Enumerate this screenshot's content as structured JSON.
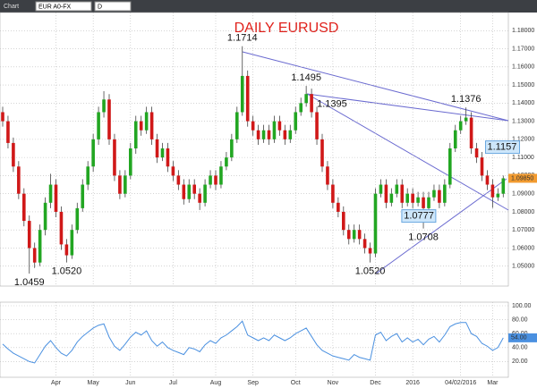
{
  "window": {
    "title": "Chart",
    "instrument": "EUR A0-FX",
    "interval": "D"
  },
  "chart_data": {
    "type": "candlestick",
    "title": "DAILY EURUSD",
    "up_color": "#22a622",
    "down_color": "#d01818",
    "grid": true,
    "open": [
      1.135,
      1.13,
      1.118,
      1.105,
      1.09,
      1.075,
      1.06,
      1.052,
      1.07,
      1.085,
      1.095,
      1.08,
      1.062,
      1.056,
      1.07,
      1.082,
      1.095,
      1.105,
      1.12,
      1.135,
      1.142,
      1.12,
      1.1,
      1.09,
      1.1,
      1.115,
      1.13,
      1.125,
      1.135,
      1.12,
      1.11,
      1.115,
      1.105,
      1.1,
      1.095,
      1.087,
      1.095,
      1.09,
      1.085,
      1.095,
      1.1,
      1.095,
      1.105,
      1.11,
      1.12,
      1.135,
      1.155,
      1.13,
      1.125,
      1.12,
      1.125,
      1.12,
      1.13,
      1.125,
      1.12,
      1.125,
      1.135,
      1.14,
      1.145,
      1.135,
      1.12,
      1.105,
      1.095,
      1.085,
      1.08,
      1.07,
      1.065,
      1.07,
      1.065,
      1.06,
      1.057,
      1.09,
      1.095,
      1.085,
      1.09,
      1.095,
      1.085,
      1.09,
      1.085,
      1.088,
      1.082,
      1.088,
      1.092,
      1.085,
      1.095,
      1.115,
      1.125,
      1.13,
      1.132,
      1.115,
      1.11,
      1.1,
      1.095,
      1.088,
      1.09
    ],
    "high": [
      1.138,
      1.133,
      1.121,
      1.108,
      1.093,
      1.078,
      1.063,
      1.073,
      1.088,
      1.101,
      1.098,
      1.083,
      1.065,
      1.073,
      1.085,
      1.098,
      1.108,
      1.123,
      1.138,
      1.1466,
      1.145,
      1.123,
      1.103,
      1.103,
      1.118,
      1.133,
      1.133,
      1.138,
      1.138,
      1.123,
      1.118,
      1.118,
      1.108,
      1.103,
      1.098,
      1.098,
      1.098,
      1.093,
      1.098,
      1.103,
      1.103,
      1.108,
      1.113,
      1.123,
      1.138,
      1.1714,
      1.158,
      1.133,
      1.128,
      1.128,
      1.128,
      1.133,
      1.133,
      1.128,
      1.128,
      1.138,
      1.143,
      1.1495,
      1.148,
      1.138,
      1.123,
      1.108,
      1.098,
      1.088,
      1.083,
      1.073,
      1.073,
      1.073,
      1.068,
      1.063,
      1.093,
      1.098,
      1.098,
      1.093,
      1.098,
      1.098,
      1.093,
      1.093,
      1.091,
      1.091,
      1.091,
      1.095,
      1.095,
      1.098,
      1.118,
      1.128,
      1.133,
      1.1376,
      1.135,
      1.118,
      1.113,
      1.103,
      1.098,
      1.093,
      1.1
    ],
    "low": [
      1.127,
      1.115,
      1.102,
      1.087,
      1.072,
      1.0459,
      1.049,
      1.05,
      1.067,
      1.082,
      1.077,
      1.059,
      1.052,
      1.054,
      1.068,
      1.08,
      1.092,
      1.102,
      1.117,
      1.132,
      1.117,
      1.097,
      1.087,
      1.088,
      1.098,
      1.112,
      1.122,
      1.123,
      1.117,
      1.107,
      1.108,
      1.102,
      1.097,
      1.092,
      1.084,
      1.085,
      1.087,
      1.081,
      1.083,
      1.093,
      1.092,
      1.093,
      1.103,
      1.108,
      1.118,
      1.133,
      1.127,
      1.122,
      1.117,
      1.118,
      1.117,
      1.118,
      1.122,
      1.117,
      1.118,
      1.123,
      1.133,
      1.138,
      1.132,
      1.117,
      1.102,
      1.092,
      1.082,
      1.077,
      1.067,
      1.062,
      1.063,
      1.062,
      1.057,
      1.052,
      1.055,
      1.088,
      1.082,
      1.083,
      1.088,
      1.082,
      1.083,
      1.082,
      1.083,
      1.0708,
      1.08,
      1.086,
      1.082,
      1.083,
      1.093,
      1.113,
      1.123,
      1.128,
      1.112,
      1.107,
      1.097,
      1.092,
      1.0822,
      1.086,
      1.088
    ],
    "close": [
      1.13,
      1.118,
      1.105,
      1.09,
      1.075,
      1.06,
      1.052,
      1.07,
      1.085,
      1.095,
      1.08,
      1.062,
      1.056,
      1.07,
      1.082,
      1.095,
      1.105,
      1.12,
      1.135,
      1.142,
      1.12,
      1.1,
      1.09,
      1.1,
      1.115,
      1.13,
      1.125,
      1.135,
      1.12,
      1.11,
      1.115,
      1.105,
      1.1,
      1.095,
      1.087,
      1.095,
      1.09,
      1.085,
      1.095,
      1.1,
      1.095,
      1.105,
      1.11,
      1.12,
      1.135,
      1.155,
      1.13,
      1.125,
      1.12,
      1.125,
      1.12,
      1.13,
      1.125,
      1.12,
      1.125,
      1.135,
      1.14,
      1.145,
      1.135,
      1.12,
      1.105,
      1.095,
      1.085,
      1.08,
      1.07,
      1.065,
      1.07,
      1.065,
      1.06,
      1.057,
      1.09,
      1.095,
      1.085,
      1.09,
      1.095,
      1.085,
      1.09,
      1.085,
      1.088,
      1.082,
      1.088,
      1.092,
      1.085,
      1.095,
      1.115,
      1.125,
      1.13,
      1.132,
      1.115,
      1.11,
      1.1,
      1.095,
      1.088,
      1.09,
      1.0985
    ],
    "ylim": [
      1.04,
      1.19
    ],
    "yticks": [
      {
        "value": 1.05,
        "label": "1.05000"
      },
      {
        "value": 1.06,
        "label": "1.06000"
      },
      {
        "value": 1.07,
        "label": "1.07000"
      },
      {
        "value": 1.08,
        "label": "1.08000"
      },
      {
        "value": 1.09,
        "label": "1.09000"
      },
      {
        "value": 1.1,
        "label": "1.10000"
      },
      {
        "value": 1.11,
        "label": "1.11000"
      },
      {
        "value": 1.12,
        "label": "1.12000"
      },
      {
        "value": 1.13,
        "label": "1.13000"
      },
      {
        "value": 1.14,
        "label": "1.14000"
      },
      {
        "value": 1.15,
        "label": "1.15000"
      },
      {
        "value": 1.16,
        "label": "1.16000"
      },
      {
        "value": 1.17,
        "label": "1.17000"
      },
      {
        "value": 1.18,
        "label": "1.18000"
      }
    ],
    "last_label": {
      "value": 1.0985,
      "label": "1.09850"
    },
    "xticks": [
      {
        "value": 10,
        "label": "Apr"
      },
      {
        "value": 17,
        "label": "May"
      },
      {
        "value": 24,
        "label": "Jun"
      },
      {
        "value": 32,
        "label": "Jul"
      },
      {
        "value": 40,
        "label": "Aug"
      },
      {
        "value": 47,
        "label": "Sep"
      },
      {
        "value": 55,
        "label": "Oct"
      },
      {
        "value": 62,
        "label": "Nov"
      },
      {
        "value": 70,
        "label": "Dec"
      },
      {
        "value": 77,
        "label": "2016"
      },
      {
        "value": 86,
        "label": "04/02/2016"
      },
      {
        "value": 92,
        "label": "Mar"
      }
    ],
    "annotations": [
      {
        "text": "1.1714",
        "at": 45,
        "y": 1.1714,
        "position": "above"
      },
      {
        "text": "1.1495",
        "at": 57,
        "y": 1.1495,
        "position": "above"
      },
      {
        "text": "1.1395",
        "at": 58,
        "y": 1.1395,
        "position": "right"
      },
      {
        "text": "1.1376",
        "at": 87,
        "y": 1.1376,
        "position": "above"
      },
      {
        "text": "1.1157",
        "at": 90,
        "y": 1.1157,
        "position": "right",
        "boxed": true
      },
      {
        "text": "1.0777",
        "at": 82,
        "y": 1.0777,
        "position": "left",
        "boxed": true
      },
      {
        "text": "1.0708",
        "at": 79,
        "y": 1.0708,
        "position": "below"
      },
      {
        "text": "1.0520",
        "at": 69,
        "y": 1.052,
        "position": "below"
      },
      {
        "text": "1.0520",
        "at": 12,
        "y": 1.052,
        "position": "below"
      },
      {
        "text": "1.0459",
        "at": 5,
        "y": 1.0459,
        "position": "below"
      }
    ],
    "oscillator": {
      "color": "#4a90e0",
      "ylim": [
        0,
        100
      ],
      "yticks": [
        {
          "value": 20,
          "label": "20.00"
        },
        {
          "value": 40,
          "label": "40.00"
        },
        {
          "value": 60,
          "label": "60.00"
        },
        {
          "value": 80,
          "label": "80.00"
        },
        {
          "value": 100,
          "label": "100.00"
        }
      ],
      "values": [
        45,
        38,
        32,
        28,
        24,
        20,
        18,
        30,
        42,
        50,
        40,
        32,
        28,
        36,
        48,
        56,
        62,
        68,
        72,
        74,
        55,
        42,
        36,
        45,
        55,
        62,
        58,
        64,
        50,
        42,
        48,
        40,
        36,
        33,
        30,
        40,
        38,
        34,
        44,
        50,
        46,
        54,
        58,
        64,
        70,
        78,
        58,
        54,
        50,
        54,
        50,
        58,
        54,
        50,
        54,
        60,
        64,
        68,
        56,
        44,
        36,
        32,
        28,
        26,
        24,
        22,
        30,
        26,
        24,
        22,
        58,
        62,
        50,
        56,
        60,
        48,
        54,
        48,
        52,
        44,
        52,
        56,
        48,
        58,
        70,
        74,
        76,
        76,
        60,
        56,
        46,
        42,
        36,
        40,
        54
      ],
      "last_label": {
        "value": 54,
        "label": "54.00"
      }
    }
  }
}
